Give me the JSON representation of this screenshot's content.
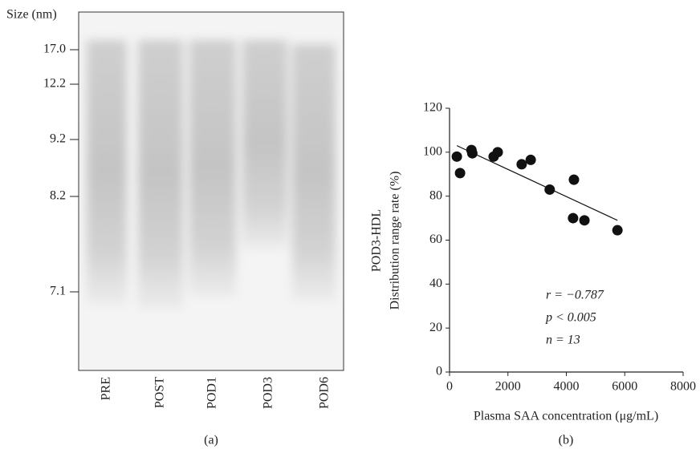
{
  "gel": {
    "y_axis_label": "Size (nm)",
    "size_markers": [
      "17.0",
      "12.2",
      "9.2",
      "8.2",
      "7.1"
    ],
    "lanes": [
      "PRE",
      "POST",
      "POD1",
      "POD3",
      "POD6"
    ],
    "caption": "(a)"
  },
  "chart_data": {
    "type": "scatter",
    "caption": "(b)",
    "x_label": "Plasma SAA concentration (μg/mL)",
    "y_label": [
      "POD3-HDL",
      "Distribution range rate (%)"
    ],
    "annotations": [
      "r = −0.787",
      "p < 0.005",
      "n = 13"
    ],
    "x": [
      250,
      360,
      750,
      780,
      1510,
      1650,
      2470,
      2780,
      3430,
      4260,
      4230,
      4620,
      5750
    ],
    "values": [
      98,
      90.5,
      101,
      99.5,
      98,
      100,
      94.5,
      96.5,
      83,
      87.5,
      70,
      69,
      64.5
    ],
    "color": "#111111",
    "fit_line": {
      "x": [
        250,
        5750
      ],
      "y": [
        103,
        69
      ]
    },
    "xlim": [
      0,
      8000
    ],
    "xticks": [
      0,
      2000,
      4000,
      6000,
      8000
    ],
    "ylim": [
      0,
      120
    ],
    "yticks": [
      0,
      20,
      40,
      60,
      80,
      100,
      120
    ]
  }
}
